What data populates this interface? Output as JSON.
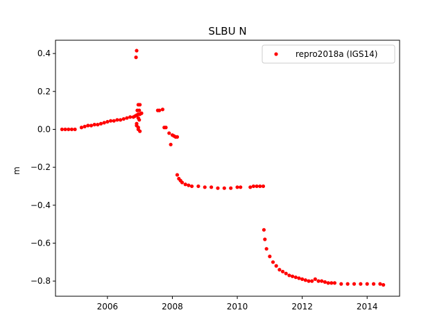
{
  "colors": {
    "series": "#ff0000",
    "axes": "#000000",
    "legend_border": "#cccccc"
  },
  "chart_data": {
    "type": "scatter",
    "title": "SLBU N",
    "xlabel": "",
    "ylabel": "m",
    "xlim": [
      2004.4,
      2015.0
    ],
    "ylim": [
      -0.88,
      0.47
    ],
    "xticks": [
      2006,
      2008,
      2010,
      2012,
      2014
    ],
    "yticks": [
      0.4,
      0.2,
      0.0,
      -0.2,
      -0.4,
      -0.6,
      -0.8
    ],
    "ytick_labels": [
      "0.4",
      "0.2",
      "0.0",
      "−0.2",
      "−0.4",
      "−0.6",
      "−0.8"
    ],
    "grid": false,
    "legend": {
      "placement": "top-right",
      "entries": [
        "repro2018a (IGS14)"
      ]
    },
    "series": [
      {
        "name": "repro2018a (IGS14)",
        "marker": "circle",
        "x": [
          2004.6,
          2004.7,
          2004.8,
          2004.9,
          2005.0,
          2005.2,
          2005.3,
          2005.4,
          2005.5,
          2005.6,
          2005.7,
          2005.8,
          2005.9,
          2006.0,
          2006.1,
          2006.2,
          2006.3,
          2006.4,
          2006.5,
          2006.6,
          2006.7,
          2006.8,
          2006.85,
          2006.9,
          2006.95,
          2007.0,
          2007.05,
          2006.88,
          2006.9,
          2006.95,
          2007.0,
          2006.92,
          2006.98,
          2006.95,
          2006.98,
          2006.9,
          2006.95,
          2007.0,
          2006.9,
          2006.95,
          2007.55,
          2007.6,
          2007.7,
          2007.75,
          2007.8,
          2007.9,
          2008.0,
          2008.05,
          2008.1,
          2008.15,
          2007.95,
          2008.15,
          2008.2,
          2008.25,
          2008.3,
          2008.4,
          2008.5,
          2008.6,
          2008.8,
          2009.0,
          2009.2,
          2009.4,
          2009.6,
          2009.8,
          2010.0,
          2010.1,
          2010.4,
          2010.5,
          2010.6,
          2010.7,
          2010.8,
          2010.82,
          2010.85,
          2010.9,
          2011.0,
          2011.1,
          2011.2,
          2011.3,
          2011.4,
          2011.5,
          2011.6,
          2011.7,
          2011.8,
          2011.9,
          2012.0,
          2012.1,
          2012.2,
          2012.3,
          2012.4,
          2012.5,
          2012.6,
          2012.7,
          2012.8,
          2012.9,
          2013.0,
          2013.2,
          2013.4,
          2013.6,
          2013.8,
          2014.0,
          2014.2,
          2014.4,
          2014.5
        ],
        "y": [
          0.0,
          0.0,
          0.0,
          0.0,
          0.0,
          0.01,
          0.015,
          0.02,
          0.02,
          0.025,
          0.025,
          0.03,
          0.035,
          0.04,
          0.045,
          0.045,
          0.05,
          0.05,
          0.055,
          0.06,
          0.065,
          0.065,
          0.07,
          0.075,
          0.08,
          0.08,
          0.085,
          0.38,
          0.415,
          0.13,
          0.13,
          0.1,
          0.1,
          0.06,
          0.05,
          0.03,
          0.01,
          -0.01,
          0.02,
          0.0,
          0.1,
          0.1,
          0.105,
          0.01,
          0.01,
          -0.02,
          -0.03,
          -0.035,
          -0.04,
          -0.04,
          -0.08,
          -0.24,
          -0.26,
          -0.27,
          -0.28,
          -0.29,
          -0.295,
          -0.3,
          -0.3,
          -0.305,
          -0.305,
          -0.31,
          -0.31,
          -0.31,
          -0.305,
          -0.305,
          -0.305,
          -0.3,
          -0.3,
          -0.3,
          -0.3,
          -0.53,
          -0.58,
          -0.63,
          -0.67,
          -0.7,
          -0.72,
          -0.74,
          -0.75,
          -0.76,
          -0.77,
          -0.775,
          -0.78,
          -0.785,
          -0.79,
          -0.795,
          -0.8,
          -0.8,
          -0.79,
          -0.8,
          -0.8,
          -0.805,
          -0.81,
          -0.81,
          -0.81,
          -0.815,
          -0.815,
          -0.815,
          -0.815,
          -0.815,
          -0.815,
          -0.815,
          -0.82
        ]
      }
    ]
  }
}
